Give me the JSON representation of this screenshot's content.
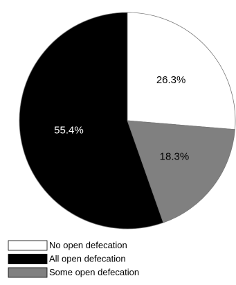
{
  "chart_data": {
    "type": "pie",
    "categories": [
      "No open defecation",
      "All open defecation",
      "Some open defecation"
    ],
    "values": [
      26.3,
      55.4,
      18.3
    ],
    "value_labels": [
      "26.3%",
      "55.4%",
      "18.3%"
    ],
    "colors": [
      "#ffffff",
      "#000000",
      "#808080"
    ],
    "label_colors": [
      "#000000",
      "#ffffff",
      "#000000"
    ],
    "legend": "bottom-left"
  }
}
